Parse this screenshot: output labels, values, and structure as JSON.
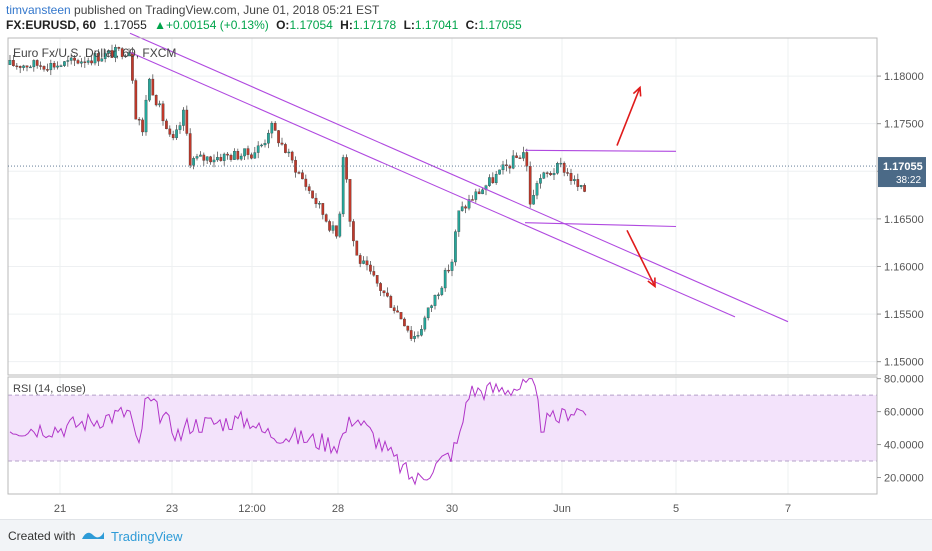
{
  "header": {
    "user": "timvansteen",
    "published": "published on TradingView.com, June 01, 2018 05:21 EST",
    "symbol": "FX:EURUSD, 60",
    "price": "1.17055",
    "change_icon": "up-triangle-icon",
    "change": "+0.00154 (+0.13%)",
    "open_label": "O:",
    "open": "1.17054",
    "high_label": "H:",
    "high": "1.17178",
    "low_label": "L:",
    "low": "1.17041",
    "close_label": "C:",
    "close": "1.17055"
  },
  "footer": {
    "created_with": "Created with",
    "brand": "TradingView",
    "logo_icon": "tradingview-logo-icon"
  },
  "colors": {
    "up": "#26a69a",
    "down": "#c0392b",
    "trendline": "#b049e0",
    "arrow": "#e01b1b",
    "rsi": "#b034c8",
    "rsi_band": "#f3e3fb",
    "price_tag": "#4b6a87"
  },
  "chart_data": [
    {
      "type": "candlestick",
      "title": "Euro Fx/U.S. Dollar, 60, FXCM",
      "y_ticks": [
        "1.18000",
        "1.17500",
        "1.17000",
        "1.16500",
        "1.16000",
        "1.15500",
        "1.15000"
      ],
      "ylim": [
        1.1486,
        1.184
      ],
      "x_ticks": [
        "21",
        "23",
        "12:00",
        "28",
        "30",
        "Jun",
        "5",
        "7"
      ],
      "last_price": "1.17055",
      "countdown": "38:22",
      "grid": true,
      "close_path": [
        [
          "21",
          1.1812
        ],
        [
          "22",
          1.1758
        ],
        [
          "22",
          1.1732
        ],
        [
          "22",
          1.18
        ],
        [
          "22",
          1.1828
        ],
        [
          "22",
          1.1781
        ],
        [
          "23",
          1.1762
        ],
        [
          "23",
          1.1712
        ],
        [
          "23",
          1.1728
        ],
        [
          "23",
          1.1742
        ],
        [
          "12:00",
          1.173
        ],
        [
          "12:00",
          1.1749
        ],
        [
          "12:00",
          1.1719
        ],
        [
          "28",
          1.1732
        ],
        [
          "28",
          1.1648
        ],
        [
          "28",
          1.1612
        ],
        [
          "28",
          1.1629
        ],
        [
          "29",
          1.154
        ],
        [
          "29",
          1.1525
        ],
        [
          "29",
          1.153
        ],
        [
          "30",
          1.1606
        ],
        [
          "30",
          1.1655
        ],
        [
          "30",
          1.1662
        ],
        [
          "30",
          1.167
        ],
        [
          "31",
          1.1722
        ],
        [
          "31",
          1.166
        ],
        [
          "31",
          1.169
        ],
        [
          "Jun",
          1.168
        ],
        [
          "Jun",
          1.1706
        ]
      ],
      "series": [
        {
          "name": "Descending channel upper line",
          "points": [
            [
              "22",
              1.1845
            ],
            [
              "7",
              1.1542
            ]
          ]
        },
        {
          "name": "Descending channel lower line",
          "points": [
            [
              "22",
              1.1825
            ],
            [
              "6",
              1.1547
            ]
          ]
        },
        {
          "name": "Resistance level",
          "points": [
            [
              "31",
              1.1722
            ],
            [
              "5",
              1.1721
            ]
          ]
        },
        {
          "name": "Support level",
          "points": [
            [
              "31",
              1.1646
            ],
            [
              "5",
              1.1642
            ]
          ]
        }
      ],
      "annotations": [
        {
          "type": "arrow",
          "direction": "up"
        },
        {
          "type": "arrow",
          "direction": "down"
        }
      ]
    },
    {
      "type": "line",
      "title": "RSI (14, close)",
      "y_ticks": [
        "80.0000",
        "60.0000",
        "40.0000",
        "20.0000"
      ],
      "ylim": [
        10,
        81
      ],
      "band": [
        30,
        70
      ],
      "x_ticks": [
        "21",
        "23",
        "12:00",
        "28",
        "30",
        "Jun",
        "5",
        "7"
      ],
      "rsi_path": [
        [
          "21",
          50
        ],
        [
          "22",
          35
        ],
        [
          "22",
          68
        ],
        [
          "22",
          60
        ],
        [
          "23",
          45
        ],
        [
          "23",
          52
        ],
        [
          "12:00",
          55
        ],
        [
          "12:00",
          48
        ],
        [
          "28",
          58
        ],
        [
          "28",
          40
        ],
        [
          "29",
          22
        ],
        [
          "29",
          18
        ],
        [
          "30",
          35
        ],
        [
          "30",
          45
        ],
        [
          "30",
          72
        ],
        [
          "31",
          75
        ],
        [
          "31",
          79
        ],
        [
          "31",
          52
        ],
        [
          "Jun",
          57
        ],
        [
          "Jun",
          61
        ]
      ]
    }
  ]
}
